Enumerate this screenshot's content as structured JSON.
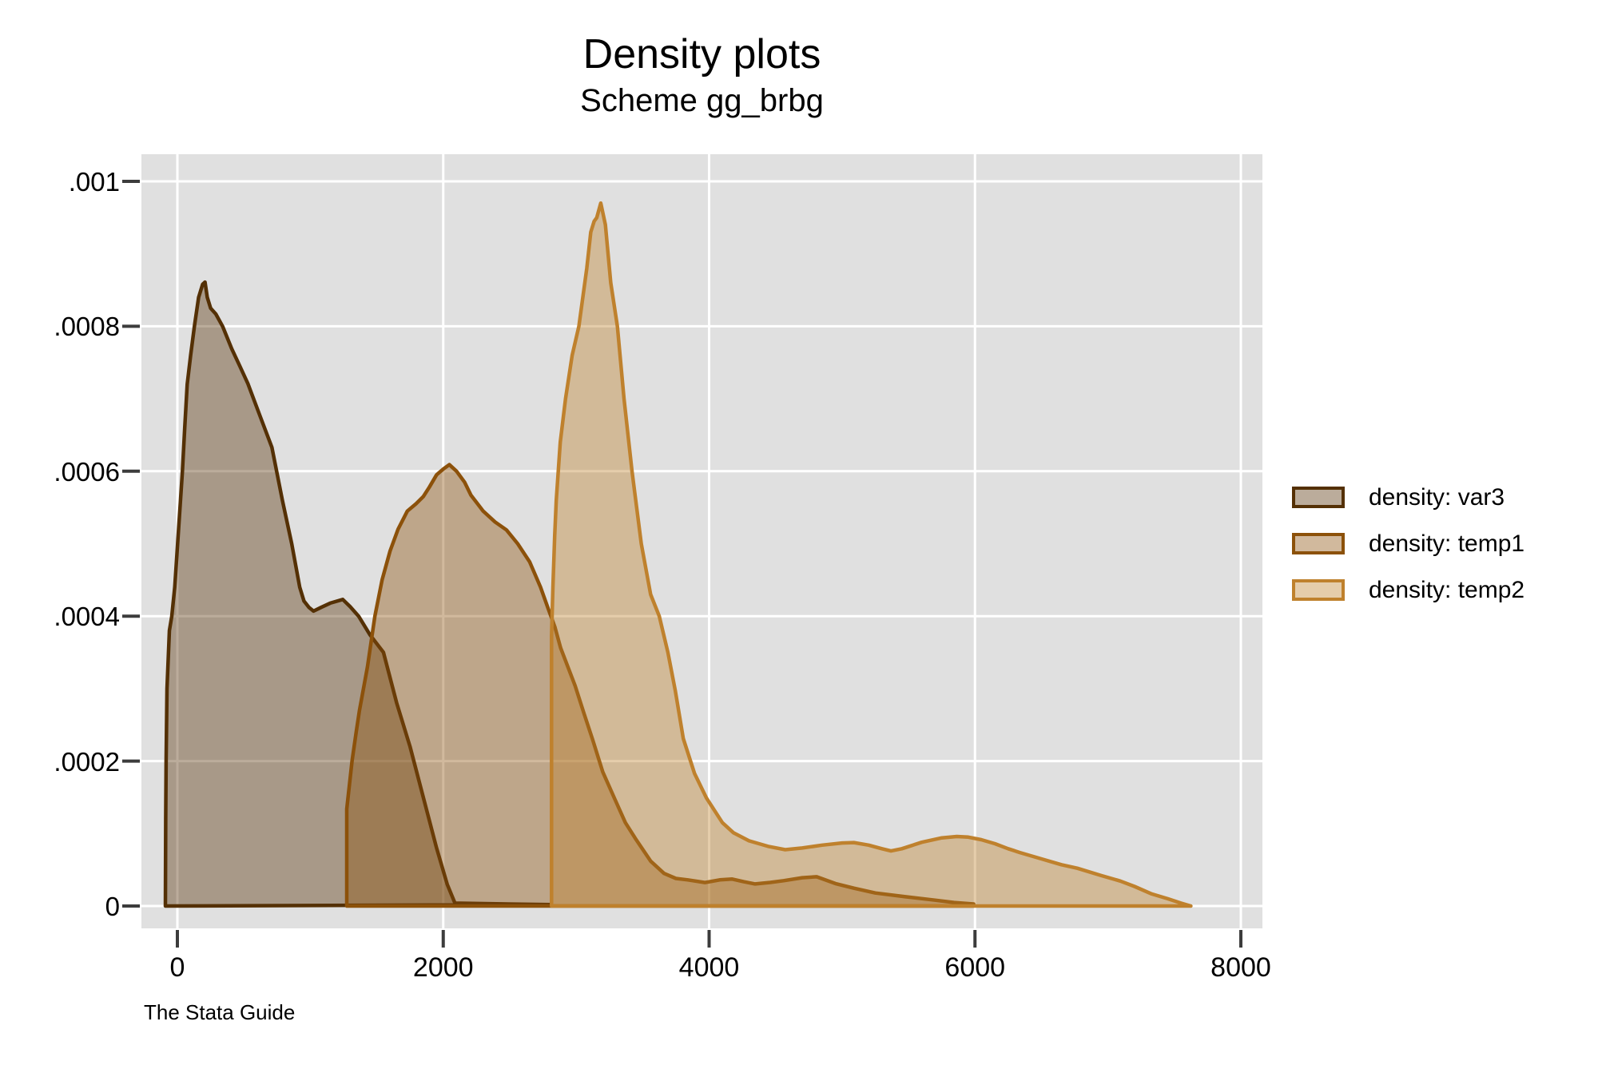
{
  "header": {
    "title": "Density plots",
    "subtitle": "Scheme gg_brbg"
  },
  "footer": {
    "note": "The Stata Guide"
  },
  "colors": {
    "page_background": "#ffffff",
    "plot_background": "#e0e0e0",
    "gridline": "#ffffff",
    "tick": "#3c3c3c",
    "text": "#000000"
  },
  "chart_data": {
    "type": "area",
    "title": "Density plots",
    "subtitle": "Scheme gg_brbg",
    "note": "The Stata Guide",
    "xlabel": "",
    "ylabel": "",
    "grid": true,
    "legend_position": "right-middle",
    "xlim": [
      -271,
      8193
    ],
    "ylim": [
      -3.1e-05,
      0.001037
    ],
    "x_ticks": [
      0,
      2000,
      4000,
      6000,
      8000
    ],
    "x_tick_labels": [
      "0",
      "2000",
      "4000",
      "6000",
      "8000"
    ],
    "y_ticks": [
      0,
      0.0002,
      0.0004,
      0.0006,
      0.0008,
      0.001
    ],
    "y_tick_labels": [
      "0",
      ".0002",
      ".0004",
      ".0006",
      ".0008",
      ".001"
    ],
    "fill_opacity": 0.4,
    "series": [
      {
        "name": "density: var3",
        "stroke": "#543005",
        "points": [
          [
            -90,
            0
          ],
          [
            -88,
            0.00012
          ],
          [
            -85,
            0.0002
          ],
          [
            -78,
            0.0003
          ],
          [
            -60,
            0.00038
          ],
          [
            -42,
            0.0004
          ],
          [
            -20,
            0.00044
          ],
          [
            2,
            0.0005
          ],
          [
            20,
            0.00055
          ],
          [
            38,
            0.0006
          ],
          [
            55,
            0.00066
          ],
          [
            74,
            0.00072
          ],
          [
            100,
            0.00076
          ],
          [
            128,
            0.0008
          ],
          [
            160,
            0.00084
          ],
          [
            190,
            0.000858
          ],
          [
            208,
            0.000861
          ],
          [
            225,
            0.00084
          ],
          [
            250,
            0.000825
          ],
          [
            289,
            0.000817
          ],
          [
            340,
            0.0008
          ],
          [
            409,
            0.000769
          ],
          [
            470,
            0.000745
          ],
          [
            530,
            0.000721
          ],
          [
            620,
            0.000677
          ],
          [
            711,
            0.000633
          ],
          [
            790,
            0.00056
          ],
          [
            860,
            0.0005
          ],
          [
            920,
            0.00044
          ],
          [
            952,
            0.000421
          ],
          [
            990,
            0.000412
          ],
          [
            1024,
            0.000407
          ],
          [
            1080,
            0.000412
          ],
          [
            1150,
            0.000418
          ],
          [
            1244,
            0.000423
          ],
          [
            1300,
            0.000413
          ],
          [
            1363,
            0.0004
          ],
          [
            1450,
            0.000374
          ],
          [
            1550,
            0.00035
          ],
          [
            1650,
            0.00028
          ],
          [
            1750,
            0.00022
          ],
          [
            1850,
            0.00015
          ],
          [
            1950,
            8e-05
          ],
          [
            2030,
            3e-05
          ],
          [
            2088,
            4e-06
          ],
          [
            2400,
            3e-06
          ],
          [
            2810,
            2e-06
          ]
        ]
      },
      {
        "name": "density: temp1",
        "stroke": "#8c510a",
        "points": [
          [
            1274,
            0
          ],
          [
            1274,
            0.000134
          ],
          [
            1290,
            0.00016
          ],
          [
            1314,
            0.0002
          ],
          [
            1345,
            0.00024
          ],
          [
            1370,
            0.00027
          ],
          [
            1430,
            0.00033
          ],
          [
            1486,
            0.0004
          ],
          [
            1540,
            0.00045
          ],
          [
            1600,
            0.00049
          ],
          [
            1660,
            0.00052
          ],
          [
            1730,
            0.000545
          ],
          [
            1795,
            0.000555
          ],
          [
            1850,
            0.000565
          ],
          [
            1895,
            0.000578
          ],
          [
            1950,
            0.000595
          ],
          [
            2000,
            0.000603
          ],
          [
            2046,
            0.000609
          ],
          [
            2100,
            0.0006
          ],
          [
            2160,
            0.000585
          ],
          [
            2208,
            0.000567
          ],
          [
            2300,
            0.000545
          ],
          [
            2390,
            0.00053
          ],
          [
            2476,
            0.000519
          ],
          [
            2560,
            0.0005
          ],
          [
            2650,
            0.000475
          ],
          [
            2732,
            0.00044
          ],
          [
            2790,
            0.00041
          ],
          [
            2840,
            0.000385
          ],
          [
            2883,
            0.000356
          ],
          [
            2992,
            0.000304
          ],
          [
            3060,
            0.000265
          ],
          [
            3125,
            0.000229
          ],
          [
            3200,
            0.000185
          ],
          [
            3287,
            0.000149
          ],
          [
            3370,
            0.000115
          ],
          [
            3446,
            9.3e-05
          ],
          [
            3560,
            6.2e-05
          ],
          [
            3661,
            4.5e-05
          ],
          [
            3750,
            3.8e-05
          ],
          [
            3840,
            3.6e-05
          ],
          [
            3969,
            3.24e-05
          ],
          [
            4080,
            3.6e-05
          ],
          [
            4174,
            3.72e-05
          ],
          [
            4260,
            3.35e-05
          ],
          [
            4346,
            3.04e-05
          ],
          [
            4460,
            3.25e-05
          ],
          [
            4560,
            3.5e-05
          ],
          [
            4700,
            3.9e-05
          ],
          [
            4809,
            4.03e-05
          ],
          [
            4950,
            3.1e-05
          ],
          [
            5089,
            2.46e-05
          ],
          [
            5250,
            1.8e-05
          ],
          [
            5477,
            1.28e-05
          ],
          [
            5700,
            8e-06
          ],
          [
            5843,
            4.9e-06
          ],
          [
            5990,
            2.8e-06
          ],
          [
            5990,
            0
          ]
        ]
      },
      {
        "name": "density: temp2",
        "stroke": "#bf812d",
        "points": [
          [
            2815,
            0
          ],
          [
            2815,
            0.000373
          ],
          [
            2825,
            0.00044
          ],
          [
            2838,
            0.00051
          ],
          [
            2850,
            0.00056
          ],
          [
            2880,
            0.00064
          ],
          [
            2920,
            0.0007
          ],
          [
            2970,
            0.00076
          ],
          [
            3020,
            0.0008
          ],
          [
            3080,
            0.00088
          ],
          [
            3110,
            0.00093
          ],
          [
            3135,
            0.000945
          ],
          [
            3155,
            0.00095
          ],
          [
            3185,
            0.00097
          ],
          [
            3220,
            0.00094
          ],
          [
            3260,
            0.00086
          ],
          [
            3310,
            0.0008
          ],
          [
            3360,
            0.0007
          ],
          [
            3420,
            0.0006
          ],
          [
            3490,
            0.0005
          ],
          [
            3560,
            0.00043
          ],
          [
            3625,
            0.0004
          ],
          [
            3690,
            0.00035
          ],
          [
            3746,
            0.000297
          ],
          [
            3806,
            0.000231
          ],
          [
            3890,
            0.000183
          ],
          [
            3980,
            0.000149
          ],
          [
            4100,
            0.000115
          ],
          [
            4184,
            0.000101
          ],
          [
            4300,
            9e-05
          ],
          [
            4450,
            8.2e-05
          ],
          [
            4572,
            7.77e-05
          ],
          [
            4700,
            8e-05
          ],
          [
            4850,
            8.4e-05
          ],
          [
            5000,
            8.7e-05
          ],
          [
            5089,
            8.75e-05
          ],
          [
            5200,
            8.4e-05
          ],
          [
            5300,
            7.9e-05
          ],
          [
            5368,
            7.6e-05
          ],
          [
            5450,
            7.9e-05
          ],
          [
            5600,
            8.8e-05
          ],
          [
            5750,
            9.4e-05
          ],
          [
            5863,
            9.59e-05
          ],
          [
            5950,
            9.5e-05
          ],
          [
            6047,
            9.15e-05
          ],
          [
            6150,
            8.6e-05
          ],
          [
            6250,
            7.9e-05
          ],
          [
            6338,
            7.38e-05
          ],
          [
            6500,
            6.5e-05
          ],
          [
            6650,
            5.7e-05
          ],
          [
            6769,
            5.21e-05
          ],
          [
            6950,
            4.2e-05
          ],
          [
            7094,
            3.44e-05
          ],
          [
            7200,
            2.7e-05
          ],
          [
            7330,
            1.66e-05
          ],
          [
            7450,
            1e-05
          ],
          [
            7550,
            4e-06
          ],
          [
            7624,
            0
          ]
        ]
      }
    ]
  },
  "legend": {
    "items": [
      {
        "label": "density: var3",
        "stroke": "#543005"
      },
      {
        "label": "density: temp1",
        "stroke": "#8c510a"
      },
      {
        "label": "density: temp2",
        "stroke": "#bf812d"
      }
    ]
  }
}
